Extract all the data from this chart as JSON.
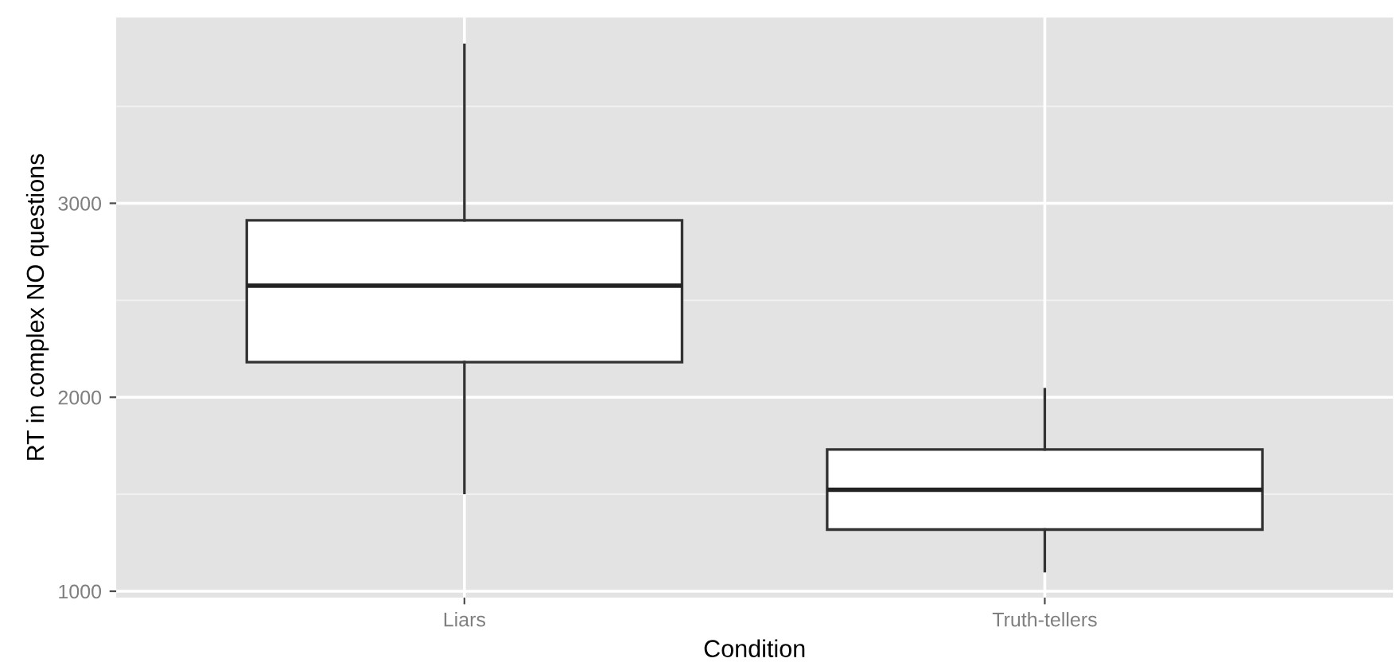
{
  "chart_data": {
    "type": "box",
    "xlabel": "Condition",
    "ylabel": "RT in complex NO questions",
    "categories": [
      "Liars",
      "Truth-tellers"
    ],
    "boxes": [
      {
        "low": 1507,
        "q1": 2181,
        "median": 2575,
        "q3": 2912,
        "high": 3816
      },
      {
        "low": 1104,
        "q1": 1318,
        "median": 1523,
        "q3": 1731,
        "high": 2041
      }
    ],
    "ylim": [
      967,
      3958
    ],
    "yticks": [
      1000,
      2000,
      3000
    ],
    "grid": true
  }
}
